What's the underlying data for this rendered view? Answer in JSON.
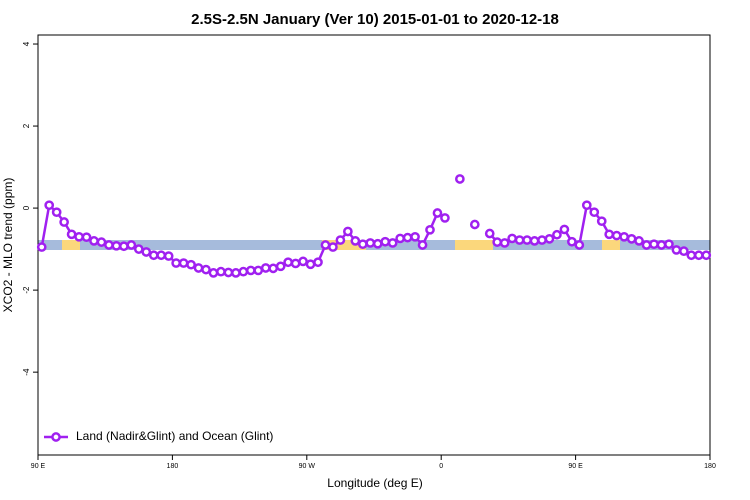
{
  "chart_data": {
    "type": "line",
    "title": "2.5S-2.5N January (Ver 10)   2015-01-01 to 2020-12-18",
    "x_label": "Longitude (deg E)",
    "y_label": "XCO2 - MLO trend (ppm)",
    "x": [
      92.5,
      97.5,
      102.5,
      107.5,
      112.5,
      117.5,
      122.5,
      127.5,
      132.5,
      137.5,
      142.5,
      147.5,
      152.5,
      157.5,
      162.5,
      167.5,
      172.5,
      177.5,
      182.5,
      187.5,
      192.5,
      197.5,
      202.5,
      207.5,
      212.5,
      217.5,
      222.5,
      227.5,
      232.5,
      237.5,
      242.5,
      247.5,
      252.5,
      257.5,
      262.5,
      267.5,
      272.5,
      277.5,
      282.5,
      287.5,
      292.5,
      297.5,
      302.5,
      307.5,
      312.5,
      317.5,
      322.5,
      327.5,
      332.5,
      337.5,
      342.5,
      347.5,
      352.5,
      357.5,
      362.5,
      367.5,
      372.5,
      377.5,
      382.5,
      387.5,
      392.5,
      397.5,
      402.5,
      407.5,
      412.5,
      417.5,
      422.5,
      427.5,
      432.5,
      437.5,
      442.5,
      447.5,
      452.5,
      457.5,
      462.5,
      467.5,
      472.5,
      477.5,
      482.5,
      487.5,
      492.5,
      497.5,
      502.5,
      507.5,
      512.5,
      517.5,
      522.5,
      527.5,
      532.5,
      537.5
    ],
    "series": [
      {
        "name": "Land (Nadir&Glint) and Ocean (Glint)",
        "color": "#a020f0",
        "values": [
          -0.95,
          0.07,
          -0.1,
          -0.34,
          -0.64,
          -0.7,
          -0.71,
          -0.8,
          -0.83,
          -0.9,
          -0.92,
          -0.93,
          -0.9,
          -1.0,
          -1.07,
          -1.15,
          -1.15,
          -1.17,
          -1.34,
          -1.34,
          -1.38,
          -1.46,
          -1.5,
          -1.58,
          -1.55,
          -1.57,
          -1.58,
          -1.55,
          -1.52,
          -1.52,
          -1.46,
          -1.47,
          -1.42,
          -1.32,
          -1.35,
          -1.3,
          -1.37,
          -1.32,
          -0.9,
          -0.95,
          -0.78,
          -0.57,
          -0.8,
          -0.88,
          -0.85,
          -0.87,
          -0.82,
          -0.85,
          -0.74,
          -0.72,
          -0.7,
          -0.9,
          -0.53,
          -0.12,
          -0.24,
          null,
          0.71,
          null,
          -0.4,
          null,
          -0.62,
          -0.83,
          -0.85,
          -0.74,
          -0.78,
          -0.78,
          -0.8,
          -0.78,
          -0.75,
          -0.65,
          -0.52,
          -0.82,
          -0.9,
          0.07,
          -0.1,
          -0.32,
          -0.64,
          -0.67,
          -0.7,
          -0.75,
          -0.8,
          -0.9,
          -0.88,
          -0.9,
          -0.88,
          -1.02,
          -1.05,
          -1.15,
          -1.15,
          -1.15
        ]
      }
    ],
    "xlim": [
      90,
      540
    ],
    "xticks": [
      {
        "value": 90,
        "label": "90 E"
      },
      180,
      {
        "value": 270,
        "label": "90 W"
      },
      {
        "value": 360,
        "label": "0"
      },
      {
        "value": 450,
        "label": "90 E"
      },
      {
        "value": 540,
        "label": "180"
      }
    ],
    "ylim": [
      -6.02,
      4.22
    ],
    "yticks": [
      4,
      2,
      0,
      -2,
      -4
    ],
    "legend": "bottom-left"
  }
}
